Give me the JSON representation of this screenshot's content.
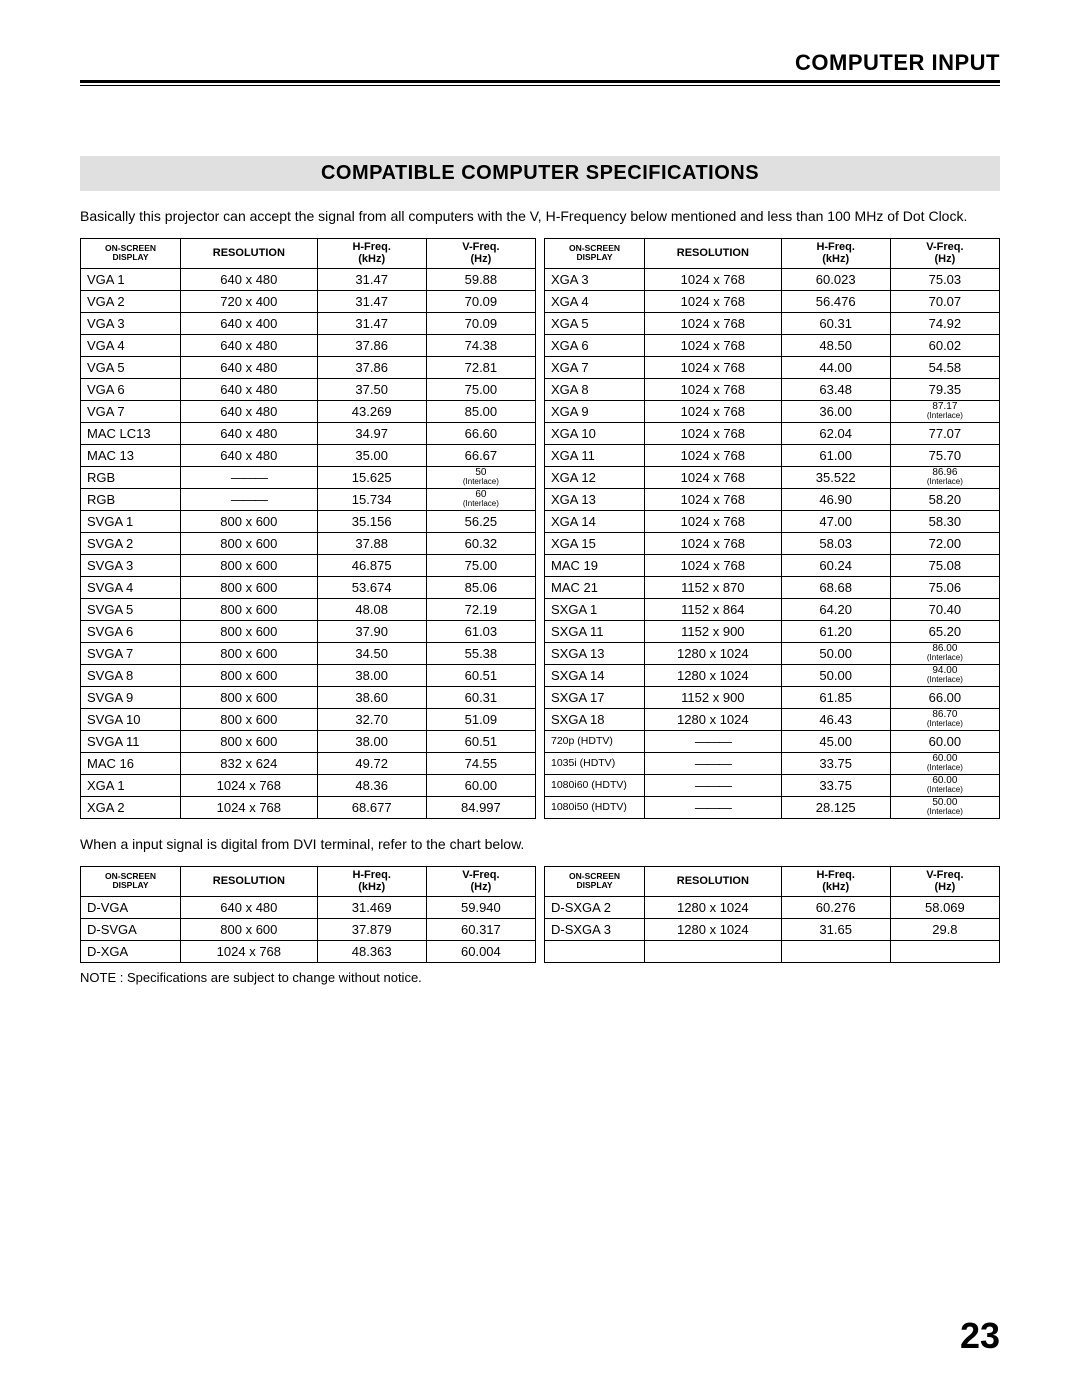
{
  "header": "COMPUTER INPUT",
  "section_title": "COMPATIBLE COMPUTER SPECIFICATIONS",
  "intro": "Basically this projector can accept the signal from all computers with the V, H-Frequency below mentioned and less than 100 MHz of Dot Clock.",
  "mid_text": "When a input signal is digital from DVI terminal, refer to the chart below.",
  "note": "NOTE : Specifications are subject to change without notice.",
  "page_number": "23",
  "columns": {
    "onscreen_l1": "ON-SCREEN",
    "onscreen_l2": "DISPLAY",
    "resolution": "RESOLUTION",
    "hfreq": "H-Freq.",
    "hfreq_unit": "(kHz)",
    "vfreq": "V-Freq.",
    "vfreq_unit": "(Hz)"
  },
  "table_main_left": [
    {
      "d": "VGA 1",
      "r": "640 x 480",
      "h": "31.47",
      "v": "59.88"
    },
    {
      "d": "VGA 2",
      "r": "720 x 400",
      "h": "31.47",
      "v": "70.09"
    },
    {
      "d": "VGA 3",
      "r": "640 x 400",
      "h": "31.47",
      "v": "70.09"
    },
    {
      "d": "VGA 4",
      "r": "640 x 480",
      "h": "37.86",
      "v": "74.38"
    },
    {
      "d": "VGA 5",
      "r": "640 x 480",
      "h": "37.86",
      "v": "72.81"
    },
    {
      "d": "VGA 6",
      "r": "640 x 480",
      "h": "37.50",
      "v": "75.00"
    },
    {
      "d": "VGA 7",
      "r": "640 x 480",
      "h": "43.269",
      "v": "85.00"
    },
    {
      "d": "MAC LC13",
      "r": "640 x 480",
      "h": "34.97",
      "v": "66.60"
    },
    {
      "d": "MAC 13",
      "r": "640 x 480",
      "h": "35.00",
      "v": "66.67"
    },
    {
      "d": "RGB",
      "r": "———",
      "h": "15.625",
      "v": "50",
      "v_sub": "(Interlace)"
    },
    {
      "d": "RGB",
      "r": "———",
      "h": "15.734",
      "v": "60",
      "v_sub": "(Interlace)"
    },
    {
      "d": "SVGA 1",
      "r": "800 x 600",
      "h": "35.156",
      "v": "56.25"
    },
    {
      "d": "SVGA 2",
      "r": "800 x 600",
      "h": "37.88",
      "v": "60.32"
    },
    {
      "d": "SVGA 3",
      "r": "800 x 600",
      "h": "46.875",
      "v": "75.00"
    },
    {
      "d": "SVGA 4",
      "r": "800 x 600",
      "h": "53.674",
      "v": "85.06"
    },
    {
      "d": "SVGA 5",
      "r": "800 x 600",
      "h": "48.08",
      "v": "72.19"
    },
    {
      "d": "SVGA 6",
      "r": "800 x 600",
      "h": "37.90",
      "v": "61.03"
    },
    {
      "d": "SVGA 7",
      "r": "800 x 600",
      "h": "34.50",
      "v": "55.38"
    },
    {
      "d": "SVGA 8",
      "r": "800 x 600",
      "h": "38.00",
      "v": "60.51"
    },
    {
      "d": "SVGA 9",
      "r": "800 x 600",
      "h": "38.60",
      "v": "60.31"
    },
    {
      "d": "SVGA 10",
      "r": "800 x 600",
      "h": "32.70",
      "v": "51.09"
    },
    {
      "d": "SVGA 11",
      "r": "800 x 600",
      "h": "38.00",
      "v": "60.51"
    },
    {
      "d": "MAC 16",
      "r": "832 x 624",
      "h": "49.72",
      "v": "74.55"
    },
    {
      "d": "XGA 1",
      "r": "1024 x 768",
      "h": "48.36",
      "v": "60.00"
    },
    {
      "d": "XGA 2",
      "r": "1024 x 768",
      "h": "68.677",
      "v": "84.997"
    }
  ],
  "table_main_right": [
    {
      "d": "XGA 3",
      "r": "1024 x 768",
      "h": "60.023",
      "v": "75.03"
    },
    {
      "d": "XGA 4",
      "r": "1024 x 768",
      "h": "56.476",
      "v": "70.07"
    },
    {
      "d": "XGA 5",
      "r": "1024 x 768",
      "h": "60.31",
      "v": "74.92"
    },
    {
      "d": "XGA 6",
      "r": "1024 x 768",
      "h": "48.50",
      "v": "60.02"
    },
    {
      "d": "XGA 7",
      "r": "1024 x 768",
      "h": "44.00",
      "v": "54.58"
    },
    {
      "d": "XGA 8",
      "r": "1024 x 768",
      "h": "63.48",
      "v": "79.35"
    },
    {
      "d": "XGA 9",
      "r": "1024 x 768",
      "h": "36.00",
      "v": "87.17",
      "v_sub": "(Interlace)"
    },
    {
      "d": "XGA 10",
      "r": "1024 x 768",
      "h": "62.04",
      "v": "77.07"
    },
    {
      "d": "XGA 11",
      "r": "1024 x 768",
      "h": "61.00",
      "v": "75.70"
    },
    {
      "d": "XGA 12",
      "r": "1024 x 768",
      "h": "35.522",
      "v": "86.96",
      "v_sub": "(Interlace)"
    },
    {
      "d": "XGA 13",
      "r": "1024 x 768",
      "h": "46.90",
      "v": "58.20"
    },
    {
      "d": "XGA 14",
      "r": "1024 x 768",
      "h": "47.00",
      "v": "58.30"
    },
    {
      "d": "XGA 15",
      "r": "1024 x 768",
      "h": "58.03",
      "v": "72.00"
    },
    {
      "d": "MAC 19",
      "r": "1024 x 768",
      "h": "60.24",
      "v": "75.08"
    },
    {
      "d": "MAC 21",
      "r": "1152 x 870",
      "h": "68.68",
      "v": "75.06"
    },
    {
      "d": "SXGA 1",
      "r": "1152 x 864",
      "h": "64.20",
      "v": "70.40"
    },
    {
      "d": "SXGA 11",
      "r": "1152 x 900",
      "h": "61.20",
      "v": "65.20"
    },
    {
      "d": "SXGA 13",
      "r": "1280 x 1024",
      "h": "50.00",
      "v": "86.00",
      "v_sub": "(Interlace)"
    },
    {
      "d": "SXGA 14",
      "r": "1280 x 1024",
      "h": "50.00",
      "v": "94.00",
      "v_sub": "(Interlace)"
    },
    {
      "d": "SXGA 17",
      "r": "1152 x 900",
      "h": "61.85",
      "v": "66.00"
    },
    {
      "d": "SXGA 18",
      "r": "1280 x 1024",
      "h": "46.43",
      "v": "86.70",
      "v_sub": "(Interlace)"
    },
    {
      "d": "720p (HDTV)",
      "r": "———",
      "h": "45.00",
      "v": "60.00",
      "small": true
    },
    {
      "d": "1035i (HDTV)",
      "r": "———",
      "h": "33.75",
      "v": "60.00",
      "v_sub": "(Interlace)",
      "small": true
    },
    {
      "d": "1080i60 (HDTV)",
      "r": "———",
      "h": "33.75",
      "v": "60.00",
      "v_sub": "(Interlace)",
      "small": true
    },
    {
      "d": "1080i50 (HDTV)",
      "r": "———",
      "h": "28.125",
      "v": "50.00",
      "v_sub": "(Interlace)",
      "small": true
    }
  ],
  "table_dvi_left": [
    {
      "d": "D-VGA",
      "r": "640 x 480",
      "h": "31.469",
      "v": "59.940"
    },
    {
      "d": "D-SVGA",
      "r": "800 x 600",
      "h": "37.879",
      "v": "60.317"
    },
    {
      "d": "D-XGA",
      "r": "1024 x 768",
      "h": "48.363",
      "v": "60.004"
    }
  ],
  "table_dvi_right": [
    {
      "d": "D-SXGA 2",
      "r": "1280 x 1024",
      "h": "60.276",
      "v": "58.069"
    },
    {
      "d": "D-SXGA 3",
      "r": "1280 x 1024",
      "h": "31.65",
      "v": "29.8"
    },
    {
      "d": "",
      "r": "",
      "h": "",
      "v": "",
      "empty": true
    }
  ],
  "styling": {
    "page_bg": "#ffffff",
    "section_title_bg": "#e0e0e0",
    "rule_color": "#000000",
    "border_color": "#000000",
    "text_color": "#000000",
    "header_font_size": 22,
    "section_title_font_size": 20,
    "body_font_size": 14,
    "cell_font_size": 13,
    "header_cell_font_size": 11,
    "page_number_font_size": 36,
    "column_widths_pct": {
      "display": 22,
      "resolution": 30,
      "hfreq": 24,
      "vfreq": 24
    }
  }
}
